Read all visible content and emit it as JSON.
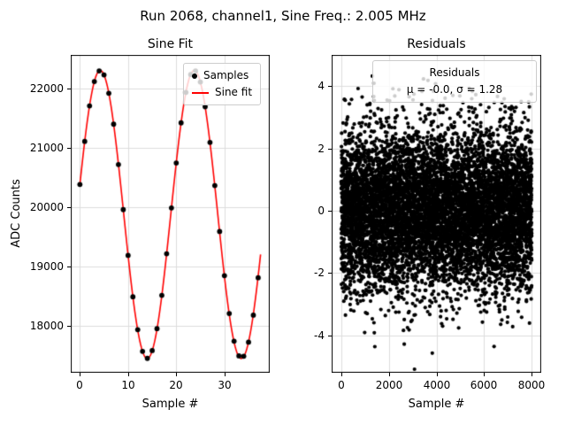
{
  "figure": {
    "title": "Run 2068, channel1, Sine Freq.: 2.005 MHz",
    "background": "#ffffff"
  },
  "style": {
    "grid_color": "#dcdcdc",
    "spine_color": "#000000",
    "marker_color": "#000000",
    "fit_color": "#ff0000"
  },
  "chart_data": [
    {
      "type": "scatter+line",
      "title": "Sine Fit",
      "xlabel": "Sample #",
      "ylabel": "ADC Counts",
      "xlim": [
        -1.9,
        39.4
      ],
      "ylim": [
        17210,
        22560
      ],
      "xticks": [
        0,
        10,
        20,
        30
      ],
      "yticks": [
        18000,
        19000,
        20000,
        21000,
        22000
      ],
      "xtick_labels": [
        "0",
        "10",
        "20",
        "30"
      ],
      "ytick_labels": [
        "18000",
        "19000",
        "20000",
        "21000",
        "22000"
      ],
      "grid": true,
      "legend_position": "upper right",
      "legend_entries": [
        {
          "label": "Samples",
          "marker": "dot",
          "color": "#000000"
        },
        {
          "label": "Sine fit",
          "marker": "line",
          "color": "#ff0000"
        }
      ],
      "samples_x": [
        0,
        1,
        2,
        3,
        4,
        5,
        6,
        7,
        8,
        9,
        10,
        11,
        12,
        13,
        14,
        15,
        16,
        17,
        18,
        19,
        20,
        21,
        22,
        23,
        24,
        25,
        26,
        27,
        28,
        29,
        30,
        31,
        32,
        33,
        34,
        35,
        36,
        37
      ],
      "samples_y": [
        20380,
        21104,
        21702,
        22112,
        22291,
        22223,
        21914,
        21394,
        20715,
        19956,
        19185,
        18489,
        17935,
        17570,
        17452,
        17583,
        17952,
        18513,
        19213,
        19985,
        20741,
        21416,
        21929,
        22230,
        22290,
        22104,
        21688,
        21088,
        20361,
        19588,
        18844,
        18208,
        17742,
        17495,
        17488,
        17725,
        18180,
        18809
      ],
      "fit": {
        "mean": 19875,
        "amplitude": 2425,
        "omega": 0.322,
        "phase": 0.21,
        "x_start": 0,
        "x_end": 37.5
      }
    },
    {
      "type": "scatter",
      "title": "Residuals",
      "xlabel": "Sample #",
      "ylabel": "",
      "xlim": [
        -400,
        8400
      ],
      "ylim": [
        -5.2,
        5.0
      ],
      "xticks": [
        0,
        2000,
        4000,
        6000,
        8000
      ],
      "yticks": [
        -4,
        -2,
        0,
        2,
        4
      ],
      "xtick_labels": [
        "0",
        "2000",
        "4000",
        "6000",
        "8000"
      ],
      "ytick_labels": [
        "-4",
        "-2",
        "0",
        "2",
        "4"
      ],
      "grid": true,
      "legend_position": "upper center",
      "legend_lines": [
        "Residuals",
        "μ = -0.0, σ = 1.28"
      ],
      "residuals": {
        "n": 8000,
        "mu": -0.0,
        "sigma": 1.28,
        "x_min": 0,
        "x_max": 8000,
        "seed": 42
      }
    }
  ]
}
